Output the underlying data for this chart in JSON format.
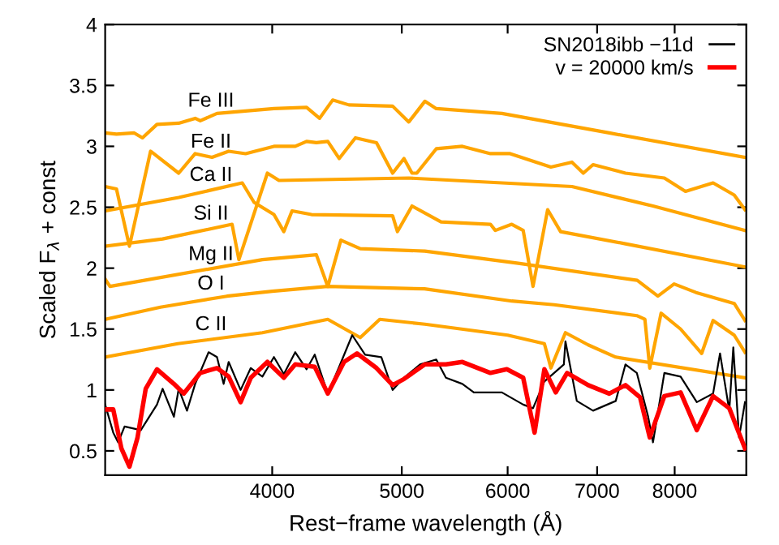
{
  "chart_data": {
    "type": "line",
    "xlabel": "Rest−frame wavelength (Å)",
    "ylabel": "Scaled F$_{λ}$ + const",
    "log": "x",
    "xlim": [
      3000,
      9050
    ],
    "xticks": [
      4000,
      5000,
      6000,
      7000,
      8000
    ],
    "ylim": [
      0.3,
      4
    ],
    "yticks": [
      0.5,
      1,
      1.5,
      2,
      2.5,
      3,
      3.5,
      4
    ],
    "grid": false,
    "legend": "top right",
    "marker": "none",
    "line_style": "solid",
    "series": [
      {
        "name": "SN2018ibb −11d",
        "color": "#000000",
        "x": [
          3000,
          3042,
          3068,
          3102,
          3190,
          3280,
          3312,
          3377,
          3405,
          3454,
          3503,
          3585,
          3637,
          3679,
          3711,
          3788,
          3855,
          3933,
          4012,
          4081,
          4162,
          4244,
          4304,
          4402,
          4489,
          4591,
          4694,
          4827,
          4922,
          5019,
          5160,
          5306,
          5395,
          5550,
          5661,
          5941,
          6163,
          6268,
          6392,
          6610,
          6628,
          6759,
          6951,
          7228,
          7350,
          7495,
          7643,
          7707,
          7859,
          8082,
          8311,
          8547,
          8650,
          8789,
          8850,
          8938,
          9030
        ],
        "values": [
          0.88,
          0.65,
          0.57,
          0.7,
          0.67,
          0.88,
          1.01,
          0.78,
          1.01,
          0.83,
          1.05,
          1.31,
          1.27,
          1.05,
          1.23,
          1.0,
          1.18,
          1.11,
          1.27,
          1.13,
          1.31,
          1.17,
          1.29,
          0.97,
          1.19,
          1.45,
          1.29,
          1.27,
          1.0,
          1.1,
          1.21,
          1.25,
          1.1,
          1.05,
          0.98,
          0.98,
          0.88,
          0.85,
          1.07,
          1.21,
          1.4,
          0.91,
          0.83,
          0.91,
          1.21,
          1.14,
          0.78,
          0.57,
          1.14,
          1.11,
          0.9,
          0.97,
          1.3,
          0.83,
          1.35,
          0.61,
          0.9
        ]
      },
      {
        "name": "v = 20000 km/s",
        "color": "#ff0000",
        "x": [
          3000,
          3042,
          3085,
          3128,
          3172,
          3217,
          3280,
          3377,
          3435,
          3534,
          3637,
          3711,
          3788,
          3855,
          3967,
          4081,
          4162,
          4304,
          4402,
          4527,
          4629,
          4787,
          4922,
          5019,
          5203,
          5395,
          5550,
          5825,
          5992,
          6163,
          6285,
          6392,
          6518,
          6647,
          6893,
          7148,
          7350,
          7537,
          7664,
          7859,
          8082,
          8311,
          8547,
          8789,
          9030
        ],
        "values": [
          0.84,
          0.84,
          0.52,
          0.37,
          0.61,
          1.01,
          1.17,
          1.05,
          0.97,
          1.14,
          1.18,
          1.11,
          0.9,
          1.1,
          1.23,
          1.1,
          1.21,
          1.19,
          0.97,
          1.23,
          1.3,
          1.18,
          1.04,
          1.09,
          1.21,
          1.21,
          1.23,
          1.14,
          1.17,
          1.1,
          0.65,
          1.17,
          0.98,
          1.14,
          1.04,
          0.97,
          1.04,
          0.94,
          0.61,
          0.95,
          0.98,
          0.67,
          0.95,
          0.85,
          0.52
        ]
      },
      {
        "name": "Fe III",
        "color": "#ffa500",
        "x": [
          3000,
          3059,
          3154,
          3199,
          3280,
          3405,
          3503,
          3534,
          3637,
          4012,
          4244,
          4340,
          4439,
          4565,
          4922,
          5061,
          5203,
          5306,
          5941,
          7148,
          9030
        ],
        "values": [
          3.11,
          3.1,
          3.11,
          3.07,
          3.18,
          3.19,
          3.23,
          3.21,
          3.27,
          3.31,
          3.32,
          3.23,
          3.38,
          3.34,
          3.33,
          3.2,
          3.37,
          3.31,
          3.27,
          3.11,
          2.91
        ]
      },
      {
        "name": "Fe II",
        "color": "#ffa500",
        "x": [
          3000,
          3059,
          3128,
          3244,
          3405,
          3503,
          3606,
          3711,
          3821,
          4012,
          4162,
          4244,
          4316,
          4402,
          4489,
          4616,
          4787,
          4922,
          5019,
          5089,
          5131,
          5306,
          5550,
          5825,
          6026,
          6464,
          6703,
          6835,
          6951,
          7350,
          7859,
          8150,
          8547,
          8864,
          9030
        ],
        "values": [
          2.67,
          2.65,
          2.18,
          2.96,
          2.78,
          2.94,
          2.91,
          2.96,
          2.94,
          3.0,
          3.0,
          3.04,
          3.03,
          3.04,
          2.9,
          3.07,
          3.03,
          2.78,
          2.9,
          2.78,
          2.78,
          2.98,
          3.0,
          2.94,
          2.94,
          2.83,
          2.87,
          2.78,
          2.85,
          2.78,
          2.74,
          2.63,
          2.7,
          2.6,
          2.48
        ]
      },
      {
        "name": "Ca II",
        "color": "#ffa500",
        "x": [
          3000,
          3405,
          3799,
          3877,
          4012,
          4081,
          4139,
          4280,
          4922,
          4963,
          5089,
          5350,
          5825,
          5874,
          6043,
          6163,
          6268,
          6428,
          6573,
          7350,
          9030
        ],
        "values": [
          2.47,
          2.58,
          2.7,
          2.54,
          2.44,
          2.3,
          2.47,
          2.44,
          2.43,
          2.3,
          2.51,
          2.38,
          2.36,
          2.31,
          2.36,
          2.31,
          1.85,
          2.48,
          2.3,
          2.2,
          2.01
        ]
      },
      {
        "name": "Si II",
        "color": "#ffa500",
        "x": [
          3000,
          3312,
          3733,
          3777,
          3967,
          4047,
          5061,
          6703,
          7707,
          9030
        ],
        "values": [
          2.18,
          2.24,
          2.36,
          2.07,
          2.78,
          2.72,
          2.74,
          2.67,
          2.51,
          2.31
        ]
      },
      {
        "name": "Mg II",
        "color": "#ffa500",
        "x": [
          3000,
          3025,
          3933,
          4316,
          4402,
          4502,
          4655,
          5203,
          6111,
          7500,
          7772,
          7992,
          8300,
          8864,
          9030
        ],
        "values": [
          1.91,
          1.85,
          2.07,
          2.11,
          1.85,
          2.23,
          2.16,
          2.14,
          2.04,
          1.9,
          1.77,
          1.87,
          1.8,
          1.71,
          1.57
        ]
      },
      {
        "name": "O I",
        "color": "#ffa500",
        "x": [
          3000,
          3300,
          3700,
          4000,
          4400,
          5200,
          6043,
          6500,
          7495,
          7600,
          7664,
          7815,
          8082,
          8381,
          8547,
          8864,
          9030
        ],
        "values": [
          1.58,
          1.68,
          1.77,
          1.81,
          1.85,
          1.83,
          1.73,
          1.7,
          1.61,
          1.58,
          1.18,
          1.63,
          1.5,
          1.3,
          1.57,
          1.45,
          1.31
        ]
      },
      {
        "name": "C II",
        "color": "#ffa500",
        "x": [
          3000,
          3400,
          3933,
          4402,
          4655,
          4814,
          5203,
          6000,
          6392,
          6464,
          6628,
          6893,
          7228,
          9030
        ],
        "values": [
          1.27,
          1.38,
          1.47,
          1.58,
          1.43,
          1.58,
          1.54,
          1.45,
          1.38,
          1.18,
          1.47,
          1.37,
          1.27,
          1.1
        ]
      }
    ]
  }
}
